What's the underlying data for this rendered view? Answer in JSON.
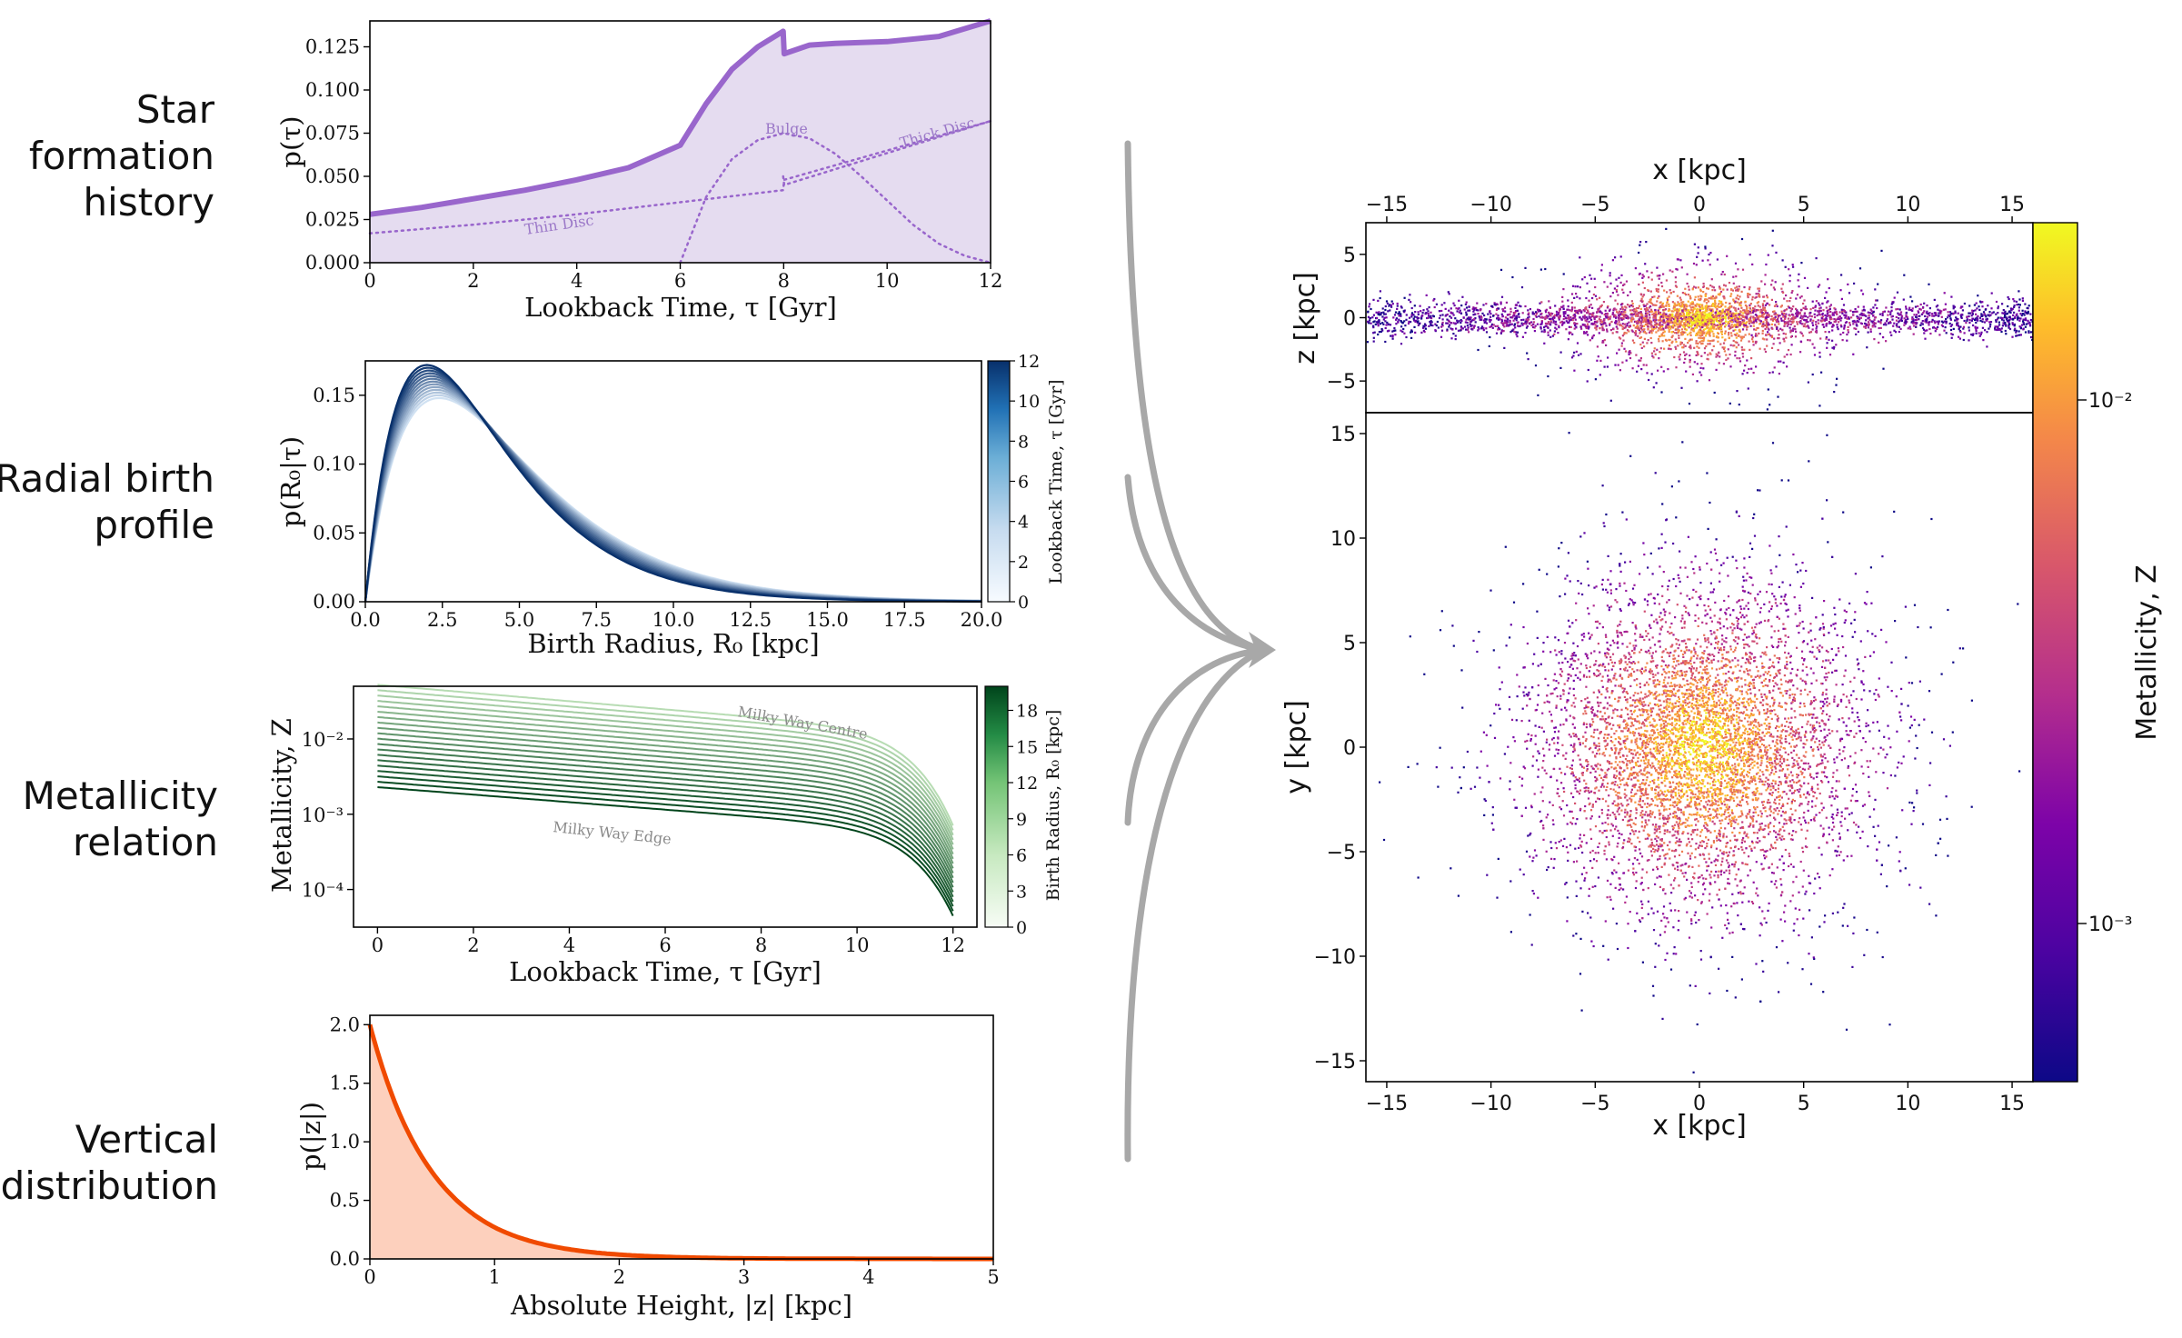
{
  "colors": {
    "sfh": "#9966cc",
    "sfh_fill": "#e5dcf0",
    "radial_dark": "#08306b",
    "radial_light": "#d0e1f2",
    "metal_dark": "#00441b",
    "metal_light": "#c7e9c0",
    "vertical": "#f04a00",
    "vertical_fill": "#fdd0bd",
    "arrow": "#a8a8a8"
  },
  "row_labels": [
    {
      "line1": "Star",
      "line2": "formation",
      "line3": "history"
    },
    {
      "line1": "Radial birth",
      "line2": "profile",
      "line3": ""
    },
    {
      "line1": "Metallicity",
      "line2": "relation",
      "line3": ""
    },
    {
      "line1": "Vertical",
      "line2": "distribution",
      "line3": ""
    }
  ],
  "chart_data": [
    {
      "id": "sfh",
      "type": "area",
      "xlabel": "Lookback Time, τ [Gyr]",
      "ylabel": "p(τ)",
      "xlim": [
        0,
        12
      ],
      "ylim": [
        0,
        0.14
      ],
      "xticks": [
        "0",
        "2",
        "4",
        "6",
        "8",
        "10",
        "12"
      ],
      "yticks": [
        "0.000",
        "0.025",
        "0.050",
        "0.075",
        "0.100",
        "0.125"
      ],
      "annotations": [
        "Thin Disc",
        "Bulge",
        "Thick Disc"
      ],
      "series": [
        {
          "component": "Total",
          "x": [
            0,
            1,
            2,
            3,
            4,
            5,
            6,
            6.5,
            7,
            7.5,
            7.99,
            8.01,
            8.5,
            9,
            10,
            11,
            12
          ],
          "y": [
            0.028,
            0.032,
            0.037,
            0.042,
            0.048,
            0.055,
            0.068,
            0.092,
            0.112,
            0.125,
            0.134,
            0.121,
            0.126,
            0.127,
            0.128,
            0.131,
            0.14
          ]
        },
        {
          "component": "Thin Disc",
          "x": [
            0,
            2,
            4,
            6,
            7.99,
            8.01,
            12
          ],
          "y": [
            0.017,
            0.022,
            0.028,
            0.035,
            0.042,
            0.048,
            0.082
          ]
        },
        {
          "component": "Bulge",
          "x": [
            6,
            6.5,
            7,
            7.5,
            8,
            8.5,
            9,
            9.5,
            10,
            10.5,
            11,
            11.5,
            12
          ],
          "y": [
            0,
            0.038,
            0.06,
            0.071,
            0.075,
            0.072,
            0.063,
            0.05,
            0.036,
            0.022,
            0.011,
            0.004,
            0
          ]
        },
        {
          "component": "Thick Disc",
          "x": [
            7.99,
            8.01,
            12
          ],
          "y": [
            0.05,
            0.045,
            0.082
          ]
        }
      ]
    },
    {
      "id": "radial",
      "type": "line",
      "xlabel": "Birth Radius, R₀ [kpc]",
      "ylabel": "p(R₀|τ)",
      "xlim": [
        0,
        20
      ],
      "ylim": [
        0,
        0.175
      ],
      "xticks": [
        "0.0",
        "2.5",
        "5.0",
        "7.5",
        "10.0",
        "12.5",
        "15.0",
        "17.5",
        "20.0"
      ],
      "yticks": [
        "0.00",
        "0.05",
        "0.10",
        "0.15"
      ],
      "colorbar": {
        "label": "Lookback Time, τ [Gyr]",
        "range": [
          0,
          12
        ],
        "ticks": [
          "0",
          "2",
          "4",
          "6",
          "8",
          "10",
          "12"
        ]
      },
      "curve_count": 13,
      "peak_radius_kpc": [
        2.4,
        2.0
      ],
      "peak_value": [
        0.148,
        0.172
      ]
    },
    {
      "id": "metallicity",
      "type": "line",
      "xlabel": "Lookback Time, τ [Gyr]",
      "ylabel": "Metallicity, Z",
      "xlim": [
        0,
        12
      ],
      "yscale": "log",
      "ylim_log10": [
        -4.5,
        -1.3
      ],
      "xticks": [
        "0",
        "2",
        "4",
        "6",
        "8",
        "10",
        "12"
      ],
      "yticks": [
        "10⁻²",
        "10⁻³",
        "10⁻⁴"
      ],
      "annotations": [
        "Milky Way Centre",
        "Milky Way Edge"
      ],
      "colorbar": {
        "label": "Birth Radius, R₀ [kpc]",
        "range": [
          0,
          20
        ],
        "ticks": [
          "0",
          "3",
          "6",
          "9",
          "12",
          "15",
          "18"
        ]
      },
      "curve_count": 20,
      "log10Z_at_tau0": [
        -1.28,
        -2.64
      ],
      "log10Z_at_tau12": [
        -3.15,
        -4.35
      ]
    },
    {
      "id": "vertical",
      "type": "area",
      "xlabel": "Absolute Height, |z| [kpc]",
      "ylabel": "p(|z|)",
      "xlim": [
        0,
        5
      ],
      "ylim": [
        0,
        2.08
      ],
      "xticks": [
        "0",
        "1",
        "2",
        "3",
        "4",
        "5"
      ],
      "yticks": [
        "0.0",
        "0.5",
        "1.0",
        "1.5",
        "2.0"
      ],
      "series": [
        {
          "component": "Vertical",
          "x": [
            0,
            0.25,
            0.5,
            0.75,
            1,
            1.5,
            2,
            2.5,
            3,
            3.5,
            4,
            4.5,
            5
          ],
          "y": [
            2.0,
            1.21,
            0.74,
            0.45,
            0.27,
            0.1,
            0.037,
            0.014,
            0.005,
            0.002,
            0.001,
            0.0004,
            0.0001
          ]
        }
      ]
    },
    {
      "id": "map",
      "type": "scatter",
      "top_xlabel": "x [kpc]",
      "xlabel": "x [kpc]",
      "ylabel_top": "z [kpc]",
      "ylabel_bottom": "y [kpc]",
      "xlim": [
        -16,
        16
      ],
      "ylim_edge_on": [
        -7.5,
        7.5
      ],
      "ylim_face_on": [
        -16,
        16
      ],
      "xticks": [
        "−15",
        "−10",
        "−5",
        "0",
        "5",
        "10",
        "15"
      ],
      "zticks": [
        "5",
        "0",
        "−5"
      ],
      "yticks": [
        "15",
        "10",
        "5",
        "0",
        "−5",
        "−10",
        "−15"
      ],
      "colorbar": {
        "label": "Metallicity, Z",
        "scale": "log",
        "colormap": "plasma",
        "ticks": [
          "10⁻²",
          "10⁻³"
        ]
      }
    }
  ]
}
